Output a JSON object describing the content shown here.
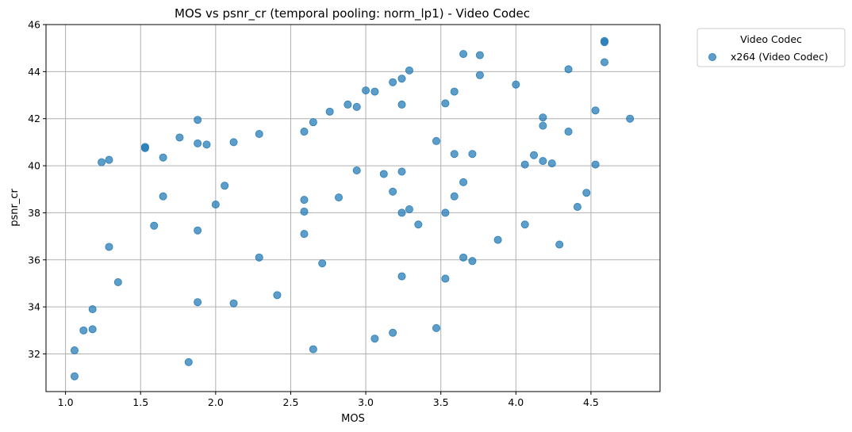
{
  "chart_data": {
    "type": "scatter",
    "title": "MOS vs psnr_cr (temporal pooling: norm_lp1) - Video Codec",
    "xlabel": "MOS",
    "ylabel": "psnr_cr",
    "xlim": [
      0.87,
      4.96
    ],
    "ylim": [
      30.4,
      46.0
    ],
    "xticks": [
      "1.0",
      "1.5",
      "2.0",
      "2.5",
      "3.0",
      "3.5",
      "4.0",
      "4.5"
    ],
    "yticks": [
      "32",
      "34",
      "36",
      "38",
      "40",
      "42",
      "44",
      "46"
    ],
    "grid": true,
    "legend": {
      "title": "Video Codec",
      "placement": "outside-top-right"
    },
    "series": [
      {
        "name": "x264 (Video Codec)",
        "color": "#1f77b4",
        "points": [
          [
            1.06,
            31.05
          ],
          [
            1.06,
            32.15
          ],
          [
            1.12,
            33.0
          ],
          [
            1.18,
            33.05
          ],
          [
            1.18,
            33.9
          ],
          [
            1.24,
            40.15
          ],
          [
            1.29,
            40.25
          ],
          [
            1.29,
            36.55
          ],
          [
            1.35,
            35.05
          ],
          [
            1.53,
            40.8
          ],
          [
            1.53,
            40.75
          ],
          [
            1.59,
            37.45
          ],
          [
            1.65,
            40.35
          ],
          [
            1.65,
            38.7
          ],
          [
            1.76,
            41.2
          ],
          [
            1.82,
            31.65
          ],
          [
            1.88,
            41.95
          ],
          [
            1.88,
            40.95
          ],
          [
            1.88,
            37.25
          ],
          [
            1.88,
            34.2
          ],
          [
            1.94,
            40.9
          ],
          [
            2.0,
            38.35
          ],
          [
            2.06,
            39.15
          ],
          [
            2.12,
            41.0
          ],
          [
            2.12,
            34.15
          ],
          [
            2.29,
            41.35
          ],
          [
            2.29,
            36.1
          ],
          [
            2.41,
            34.5
          ],
          [
            2.59,
            41.45
          ],
          [
            2.59,
            38.55
          ],
          [
            2.59,
            38.05
          ],
          [
            2.59,
            37.1
          ],
          [
            2.65,
            41.85
          ],
          [
            2.65,
            32.2
          ],
          [
            2.71,
            35.85
          ],
          [
            2.76,
            42.3
          ],
          [
            2.82,
            38.65
          ],
          [
            2.88,
            42.6
          ],
          [
            2.94,
            42.5
          ],
          [
            2.94,
            39.8
          ],
          [
            3.0,
            43.2
          ],
          [
            3.06,
            43.15
          ],
          [
            3.06,
            32.65
          ],
          [
            3.12,
            39.65
          ],
          [
            3.18,
            43.55
          ],
          [
            3.18,
            38.9
          ],
          [
            3.18,
            32.9
          ],
          [
            3.24,
            43.7
          ],
          [
            3.24,
            42.6
          ],
          [
            3.24,
            39.75
          ],
          [
            3.24,
            38.0
          ],
          [
            3.24,
            35.3
          ],
          [
            3.29,
            44.05
          ],
          [
            3.29,
            38.15
          ],
          [
            3.35,
            37.5
          ],
          [
            3.47,
            41.05
          ],
          [
            3.47,
            33.1
          ],
          [
            3.53,
            42.65
          ],
          [
            3.53,
            38.0
          ],
          [
            3.53,
            35.2
          ],
          [
            3.59,
            43.15
          ],
          [
            3.59,
            40.5
          ],
          [
            3.59,
            38.7
          ],
          [
            3.65,
            44.75
          ],
          [
            3.65,
            39.3
          ],
          [
            3.65,
            36.1
          ],
          [
            3.71,
            40.5
          ],
          [
            3.71,
            35.95
          ],
          [
            3.76,
            44.7
          ],
          [
            3.76,
            43.85
          ],
          [
            3.88,
            36.85
          ],
          [
            4.0,
            43.45
          ],
          [
            4.06,
            40.05
          ],
          [
            4.06,
            37.5
          ],
          [
            4.12,
            40.45
          ],
          [
            4.18,
            42.05
          ],
          [
            4.18,
            41.7
          ],
          [
            4.18,
            40.2
          ],
          [
            4.24,
            40.1
          ],
          [
            4.29,
            36.65
          ],
          [
            4.35,
            44.1
          ],
          [
            4.35,
            41.45
          ],
          [
            4.41,
            38.25
          ],
          [
            4.47,
            38.85
          ],
          [
            4.53,
            42.35
          ],
          [
            4.53,
            40.05
          ],
          [
            4.59,
            45.3
          ],
          [
            4.59,
            45.25
          ],
          [
            4.59,
            44.4
          ],
          [
            4.76,
            42.0
          ]
        ]
      }
    ]
  }
}
